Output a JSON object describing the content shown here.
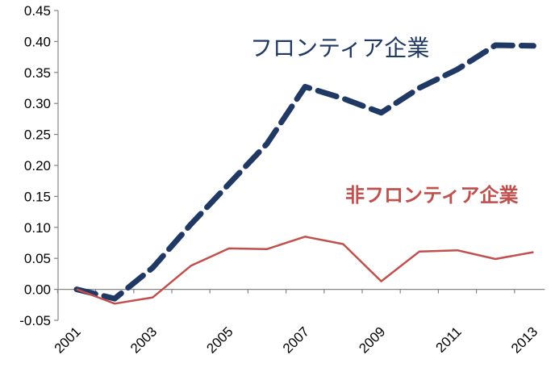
{
  "chart_data": {
    "type": "line",
    "x": [
      2001,
      2002,
      2003,
      2004,
      2005,
      2006,
      2007,
      2008,
      2009,
      2010,
      2011,
      2012,
      2013
    ],
    "x_tick_labels": [
      "2001",
      "2003",
      "2005",
      "2007",
      "2009",
      "2011",
      "2013"
    ],
    "y_tick_labels": [
      "0.45",
      "0.40",
      "0.35",
      "0.30",
      "0.25",
      "0.20",
      "0.15",
      "0.10",
      "0.05",
      "0.00",
      "-0.05"
    ],
    "ylim": [
      -0.05,
      0.45
    ],
    "y_ticks": [
      0.45,
      0.4,
      0.35,
      0.3,
      0.25,
      0.2,
      0.15,
      0.1,
      0.05,
      0.0,
      -0.05
    ],
    "grid": false,
    "legend": "none",
    "series": [
      {
        "name": "フロンティア企業",
        "color": "#1f3864",
        "style": "dashed",
        "values": [
          0.0,
          -0.015,
          0.035,
          0.105,
          0.17,
          0.235,
          0.327,
          0.308,
          0.285,
          0.325,
          0.355,
          0.394,
          0.393
        ]
      },
      {
        "name": "非フロンティア企業",
        "color": "#c0504d",
        "style": "solid",
        "values": [
          0.0,
          -0.023,
          -0.013,
          0.038,
          0.066,
          0.065,
          0.085,
          0.073,
          0.013,
          0.061,
          0.063,
          0.049,
          0.06
        ]
      }
    ]
  }
}
